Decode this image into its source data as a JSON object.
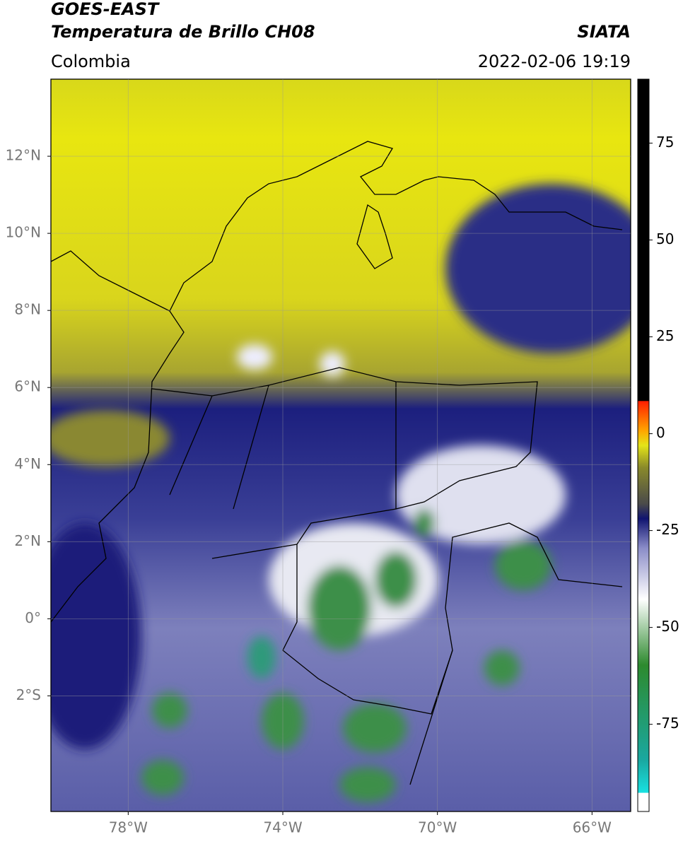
{
  "header": {
    "title": "GOES-EAST",
    "subtitle": "Temperatura de Brillo CH08",
    "source": "SIATA",
    "region": "Colombia",
    "datetime": "2022-02-06 19:19"
  },
  "map": {
    "xlim": [
      -80,
      -65
    ],
    "ylim": [
      -5,
      14
    ],
    "lat_ticks": [
      {
        "value": 12,
        "label": "12°N"
      },
      {
        "value": 10,
        "label": "10°N"
      },
      {
        "value": 8,
        "label": "8°N"
      },
      {
        "value": 6,
        "label": "6°N"
      },
      {
        "value": 4,
        "label": "4°N"
      },
      {
        "value": 2,
        "label": "2°N"
      },
      {
        "value": 0,
        "label": "0°"
      },
      {
        "value": -2,
        "label": "2°S"
      }
    ],
    "lon_ticks": [
      {
        "value": -78,
        "label": "78°W"
      },
      {
        "value": -74,
        "label": "74°W"
      },
      {
        "value": -70,
        "label": "70°W"
      },
      {
        "value": -66,
        "label": "66°W"
      }
    ]
  },
  "colorbar": {
    "ylim": [
      -97.5,
      91.5
    ],
    "yticks": [
      75,
      50,
      25,
      0,
      -25,
      -50,
      -75
    ]
  }
}
